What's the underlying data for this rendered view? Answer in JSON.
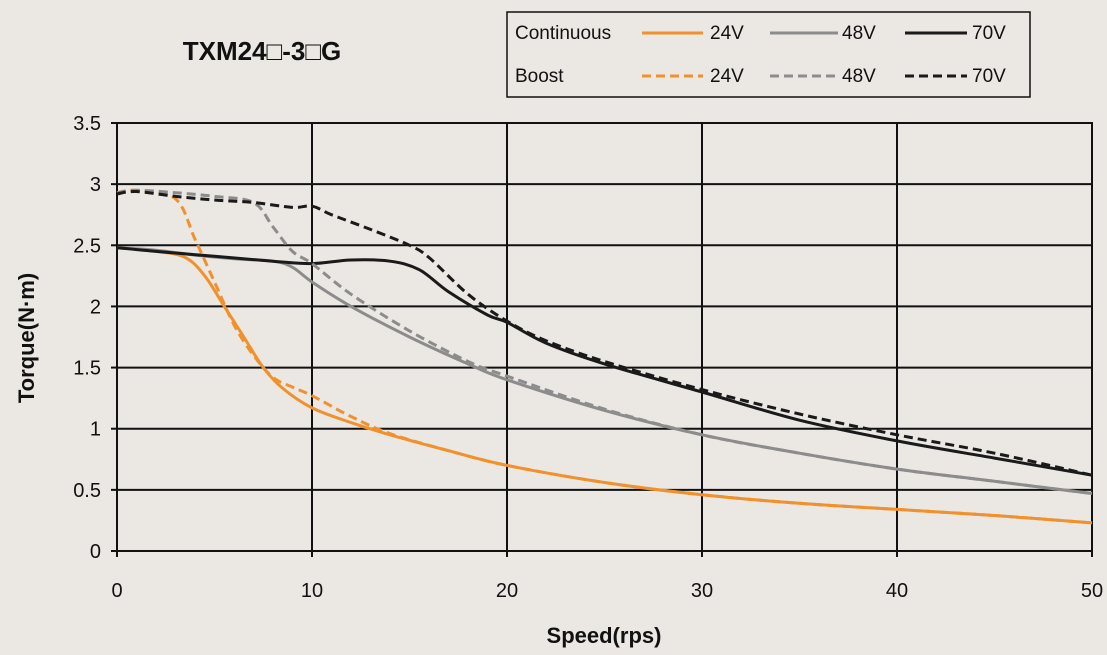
{
  "chart_data": {
    "type": "line",
    "title": "TXM24□-3□G",
    "xlabel": "Speed(rps)",
    "ylabel": "Torque(N·m)",
    "xlim": [
      0,
      50
    ],
    "ylim": [
      0,
      3.5
    ],
    "x_ticks": [
      "0",
      "10",
      "20",
      "30",
      "40",
      "50"
    ],
    "y_ticks": [
      "0",
      "0.5",
      "1",
      "1.5",
      "2",
      "2.5",
      "3",
      "3.5"
    ],
    "grid": true,
    "legend_position": "top-right",
    "legend": {
      "rows": [
        "Continuous",
        "Boost"
      ],
      "columns": [
        "24V",
        "48V",
        "70V"
      ]
    },
    "series": [
      {
        "group": "Continuous",
        "voltage": "24V",
        "color": "#f0912e",
        "dash": "solid",
        "x": [
          0,
          2,
          3.5,
          4.5,
          5.5,
          6.5,
          7.5,
          8.5,
          10,
          12,
          14,
          17,
          20,
          25,
          30,
          35,
          40,
          45,
          50
        ],
        "y": [
          2.48,
          2.45,
          2.4,
          2.25,
          2.0,
          1.75,
          1.5,
          1.33,
          1.17,
          1.05,
          0.95,
          0.82,
          0.7,
          0.56,
          0.46,
          0.39,
          0.34,
          0.29,
          0.23
        ]
      },
      {
        "group": "Continuous",
        "voltage": "48V",
        "color": "#8c8c8c",
        "dash": "solid",
        "x": [
          0,
          2,
          4,
          6,
          8,
          9,
          10,
          12,
          15,
          18,
          20,
          25,
          30,
          35,
          40,
          45,
          50
        ],
        "y": [
          2.48,
          2.46,
          2.42,
          2.39,
          2.37,
          2.32,
          2.2,
          2.0,
          1.75,
          1.53,
          1.4,
          1.15,
          0.95,
          0.8,
          0.67,
          0.57,
          0.47
        ]
      },
      {
        "group": "Continuous",
        "voltage": "70V",
        "color": "#1a1a1a",
        "dash": "solid",
        "x": [
          0,
          2,
          5,
          8,
          10,
          12,
          14,
          15.5,
          17,
          19,
          20,
          22,
          25,
          30,
          35,
          40,
          45,
          50
        ],
        "y": [
          2.48,
          2.45,
          2.41,
          2.37,
          2.35,
          2.38,
          2.37,
          2.3,
          2.12,
          1.93,
          1.87,
          1.7,
          1.53,
          1.3,
          1.07,
          0.9,
          0.76,
          0.62
        ]
      },
      {
        "group": "Boost",
        "voltage": "24V",
        "color": "#f0912e",
        "dash": "dashed",
        "x": [
          0,
          1,
          3,
          4,
          5,
          6,
          7,
          8,
          9,
          10,
          12,
          14,
          17,
          20,
          25,
          30,
          35,
          40,
          45,
          50
        ],
        "y": [
          2.93,
          2.95,
          2.88,
          2.55,
          2.2,
          1.85,
          1.6,
          1.42,
          1.34,
          1.27,
          1.1,
          0.96,
          0.82,
          0.7,
          0.56,
          0.46,
          0.39,
          0.34,
          0.29,
          0.23
        ]
      },
      {
        "group": "Boost",
        "voltage": "48V",
        "color": "#8c8c8c",
        "dash": "dashed",
        "x": [
          0,
          1,
          3,
          5,
          7,
          8,
          9,
          10,
          12,
          15,
          18,
          20,
          25,
          30,
          35,
          40,
          45,
          50
        ],
        "y": [
          2.93,
          2.95,
          2.93,
          2.9,
          2.85,
          2.65,
          2.45,
          2.35,
          2.1,
          1.8,
          1.55,
          1.43,
          1.16,
          0.95,
          0.8,
          0.67,
          0.57,
          0.47
        ]
      },
      {
        "group": "Boost",
        "voltage": "70V",
        "color": "#1a1a1a",
        "dash": "dashed",
        "x": [
          0,
          1,
          3,
          5,
          7,
          9,
          10,
          11,
          13,
          15,
          16,
          18,
          20,
          22,
          25,
          30,
          35,
          40,
          45,
          50
        ],
        "y": [
          2.92,
          2.94,
          2.9,
          2.87,
          2.85,
          2.81,
          2.82,
          2.75,
          2.63,
          2.5,
          2.4,
          2.1,
          1.88,
          1.72,
          1.55,
          1.32,
          1.12,
          0.95,
          0.8,
          0.62
        ]
      }
    ]
  }
}
